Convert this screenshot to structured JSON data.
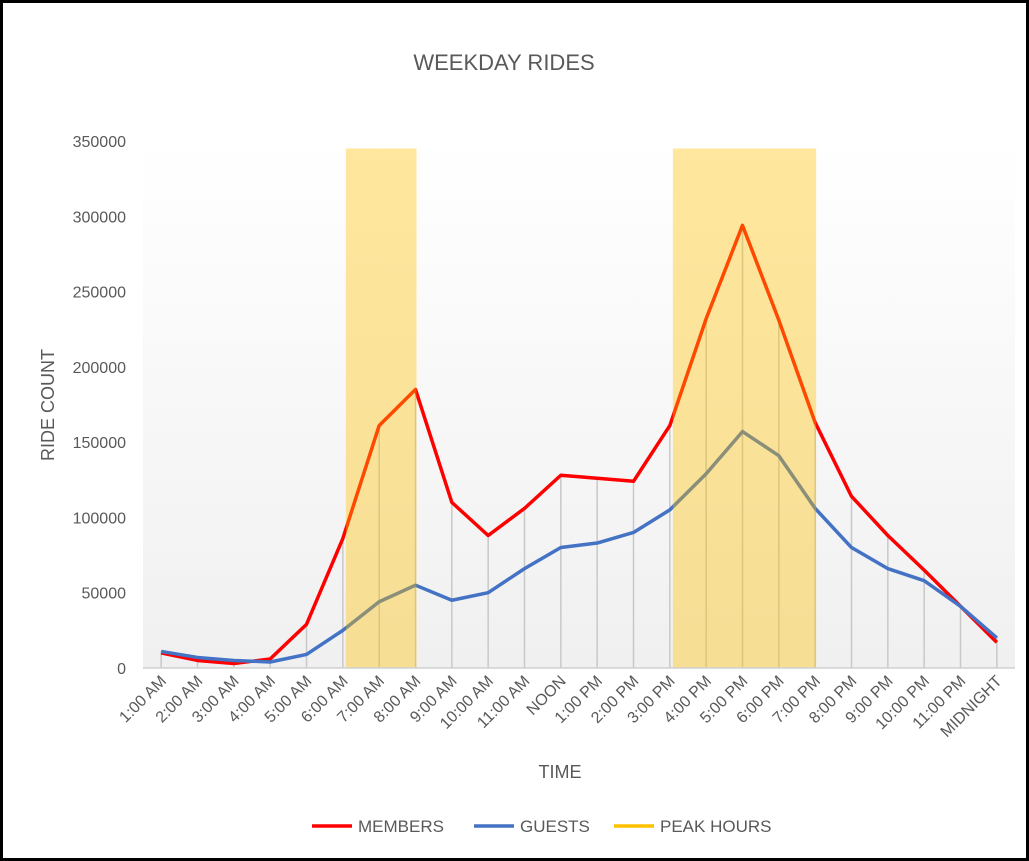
{
  "chart_data": {
    "type": "line",
    "title": "WEEKDAY RIDES",
    "xlabel": "TIME",
    "ylabel": "RIDE COUNT",
    "ylim": [
      0,
      350000
    ],
    "yticks": [
      0,
      50000,
      100000,
      150000,
      200000,
      250000,
      300000,
      350000
    ],
    "ytick_labels": [
      "0",
      "50000",
      "100000",
      "150000",
      "200000",
      "250000",
      "300000",
      "350000"
    ],
    "categories": [
      "1:00 AM",
      "2:00 AM",
      "3:00 AM",
      "4:00 AM",
      "5:00 AM",
      "6:00 AM",
      "7:00 AM",
      "8:00 AM",
      "9:00 AM",
      "10:00 AM",
      "11:00 AM",
      "NOON",
      "1:00 PM",
      "2:00 PM",
      "3:00 PM",
      "4:00 PM",
      "5:00 PM",
      "6:00 PM",
      "7:00 PM",
      "8:00 PM",
      "9:00 PM",
      "10:00 PM",
      "11:00 PM",
      "MIDNIGHT"
    ],
    "series": [
      {
        "name": "MEMBERS",
        "color": "#ff0000",
        "values": [
          10000,
          5000,
          3000,
          6000,
          29000,
          86000,
          161000,
          185000,
          110000,
          88000,
          106000,
          128000,
          126000,
          124000,
          161000,
          232000,
          294000,
          231000,
          163000,
          114000,
          88000,
          65000,
          41000,
          17000
        ]
      },
      {
        "name": "GUESTS",
        "color": "#4472c4",
        "values": [
          11000,
          7000,
          5000,
          4000,
          9000,
          25000,
          44000,
          55000,
          45000,
          50000,
          66000,
          80000,
          83000,
          90000,
          105000,
          129000,
          157000,
          141000,
          106000,
          80000,
          66000,
          58000,
          41000,
          20000
        ]
      }
    ],
    "peak_hours": {
      "name": "PEAK HOURS",
      "color": "#ffc000",
      "value": 345000,
      "ranges": [
        [
          "6:00 AM",
          "8:00 AM"
        ],
        [
          "3:00 PM",
          "7:00 PM"
        ]
      ]
    },
    "legend": {
      "placement": "bottom",
      "entries": [
        "MEMBERS",
        "GUESTS",
        "PEAK HOURS"
      ]
    },
    "grid": false
  }
}
